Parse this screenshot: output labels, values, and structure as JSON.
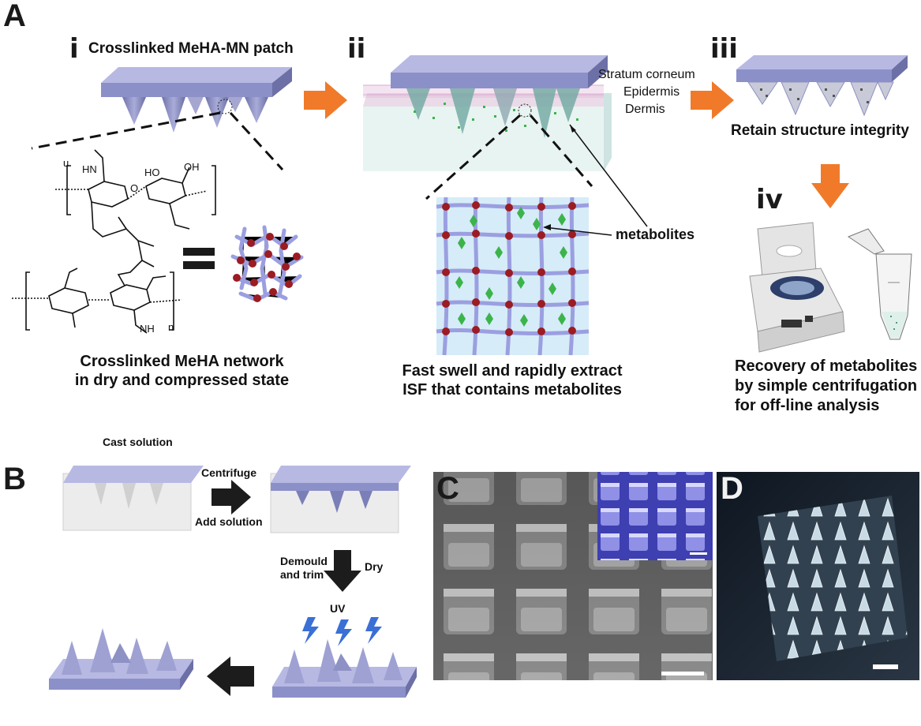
{
  "panels": {
    "A": {
      "letter": "A",
      "step_i": "i",
      "patch_title": "Crosslinked MeHA-MN patch",
      "network_caption_line1": "Crosslinked MeHA network",
      "network_caption_line2": "in dry and compressed state",
      "step_ii": "ii",
      "skin_layers": [
        "Stratum corneum",
        "Epidermis",
        "Dermis"
      ],
      "metabolites_label": "metabolites",
      "swell_caption_line1": "Fast swell and rapidly extract",
      "swell_caption_line2": "ISF that contains metabolites",
      "step_iii": "iii",
      "integrity_caption": "Retain structure integrity",
      "step_iv": "iv",
      "recovery_caption": [
        "Recovery of metabolites",
        "by simple centrifugation",
        "for off-line analysis"
      ],
      "chem_labels": {
        "u": "u",
        "n": "n",
        "HN": "HN",
        "NH": "NH",
        "HO": "HO",
        "OH": "OH",
        "O": "O"
      }
    },
    "B": {
      "letter": "B",
      "cast_solution": "Cast solution",
      "centrifuge": "Centrifuge",
      "add_solution": "Add solution",
      "demould_line1": "Demould",
      "demould_line2": "and trim",
      "dry": "Dry",
      "uv": "UV"
    },
    "C": {
      "letter": "C"
    },
    "D": {
      "letter": "D"
    }
  },
  "colors": {
    "patch_top": "#9fa3d6",
    "patch_side": "#7b7fb8",
    "orange_arrow": "#f07a2a",
    "black_arrow": "#1c1c1c",
    "network_bg": "#d6ecf8",
    "network_bond": "#9b9fe0",
    "node_red": "#9b1c22",
    "metabolite_green": "#3cb44b",
    "uv_blue": "#3a6fd6"
  }
}
